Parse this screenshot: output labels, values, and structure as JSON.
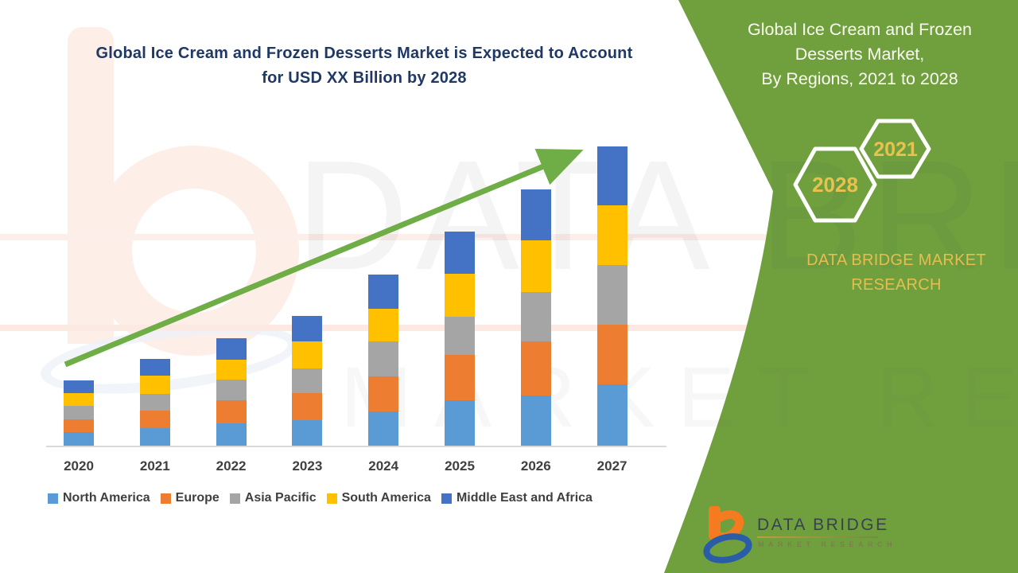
{
  "colors": {
    "panel_green": "#70A03E",
    "arrow_green": "#6FAD47",
    "title_navy": "#1F3864",
    "gold_text": "#E5BE4F",
    "hexagon_text": "#E8C24E",
    "legend_text": "#3F3F3F",
    "axis_label_text": "#404040",
    "axis_line": "#D9D9D9"
  },
  "header": {
    "title_line1": "Global Ice Cream and Frozen Desserts Market is Expected to Account",
    "title_line2": "for USD XX Billion by 2028"
  },
  "panel": {
    "title_line1": "Global Ice Cream and Frozen",
    "title_line2": "Desserts Market,",
    "title_line3": "By Regions, 2021 to 2028",
    "hexagon_back_label": "2028",
    "hexagon_front_label": "2021",
    "brand_line1": "DATA BRIDGE MARKET",
    "brand_line2": "RESEARCH"
  },
  "logo": {
    "name_text": "DATA BRIDGE",
    "sub_text": "MARKET RESEARCH"
  },
  "watermark": {
    "line1": "DATA BRIDGE",
    "line2": "MARKET RESEARCH"
  },
  "chart_data": {
    "type": "bar",
    "stacked": true,
    "title": "Global Ice Cream and Frozen Desserts Market is Expected to Account for USD XX Billion by 2028",
    "xlabel": "",
    "ylabel": "",
    "units": "relative units (chart is unlabeled; actual values shown as USD XX Billion)",
    "categories": [
      "2020",
      "2021",
      "2022",
      "2023",
      "2024",
      "2025",
      "2026",
      "2027"
    ],
    "series": [
      {
        "name": "North America",
        "color": "#5B9BD5",
        "values": [
          17,
          22,
          28,
          32,
          43,
          57,
          63,
          77
        ]
      },
      {
        "name": "Europe",
        "color": "#ED7D31",
        "values": [
          16,
          22,
          29,
          34,
          44,
          57,
          68,
          75
        ]
      },
      {
        "name": "Asia Pacific",
        "color": "#A5A5A5",
        "values": [
          17,
          21,
          26,
          31,
          44,
          48,
          62,
          75
        ]
      },
      {
        "name": "South America",
        "color": "#FFC000",
        "values": [
          16,
          23,
          25,
          34,
          41,
          54,
          65,
          75
        ]
      },
      {
        "name": "Middle East and Africa",
        "color": "#4472C4",
        "values": [
          16,
          21,
          27,
          32,
          43,
          53,
          64,
          74
        ]
      }
    ],
    "totals": [
      82,
      109,
      135,
      163,
      215,
      269,
      322,
      376
    ],
    "legend_position": "bottom",
    "grid": false,
    "trend_arrow": true,
    "ylim": [
      0,
      400
    ]
  }
}
